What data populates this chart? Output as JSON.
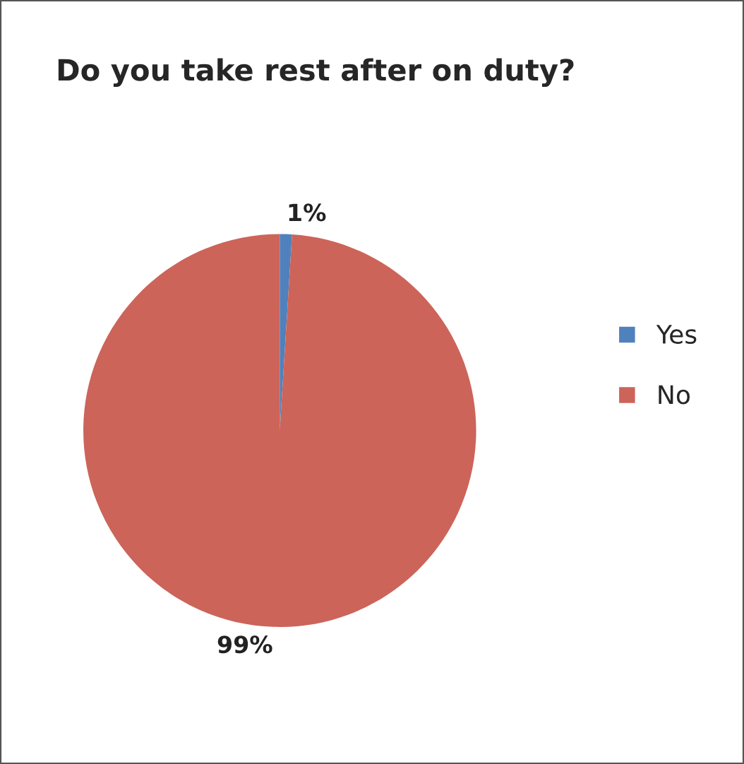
{
  "chart_data": {
    "type": "pie",
    "title": "Do you take rest after on duty?",
    "categories": [
      "Yes",
      "No"
    ],
    "values": [
      1,
      99
    ],
    "colors": [
      "#4f81bd",
      "#cc6459"
    ],
    "value_labels": [
      "1%",
      "99%"
    ],
    "legend": "right"
  }
}
